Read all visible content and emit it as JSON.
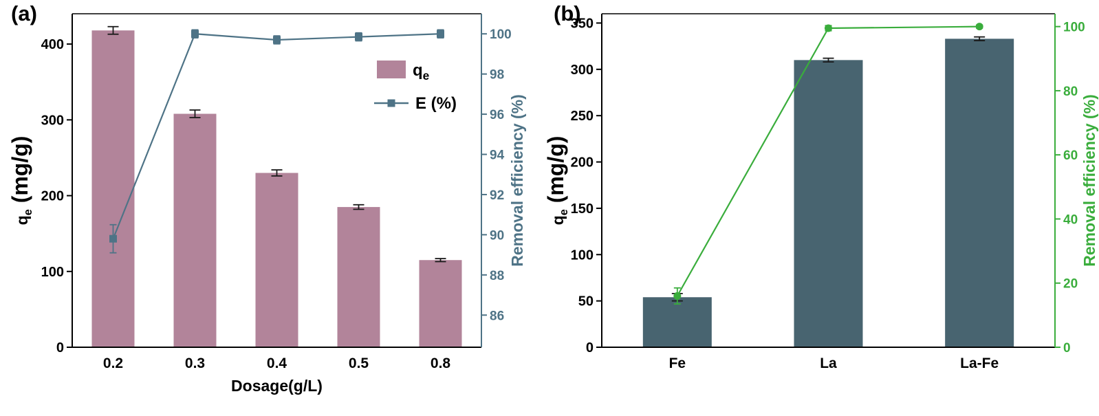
{
  "figure": {
    "background": "#ffffff"
  },
  "panels": [
    {
      "label": "(a)"
    },
    {
      "label": "(b)"
    }
  ],
  "chart_data": [
    {
      "type": "bar+line",
      "panel": "a",
      "categories": [
        "0.2",
        "0.3",
        "0.4",
        "0.5",
        "0.8"
      ],
      "xlabel": "Dosage(g/L)",
      "bar_series": {
        "name": "qe",
        "color": "#b2849a",
        "values": [
          418,
          308,
          230,
          185,
          115
        ],
        "errors": [
          5,
          5,
          4,
          3,
          2
        ]
      },
      "line_series": {
        "name": "E (%)",
        "color": "#4e7386",
        "marker": "square",
        "values": [
          89.8,
          100,
          99.7,
          99.85,
          100
        ],
        "errors": [
          0.7,
          0.2,
          0.2,
          0.2,
          0.2
        ]
      },
      "left_axis": {
        "label": {
          "pre": "q",
          "sub": "e",
          "post": " (mg/g)"
        },
        "ylim": [
          0,
          440
        ],
        "ticks": [
          0,
          100,
          200,
          300,
          400
        ],
        "color": "#000000"
      },
      "right_axis": {
        "label": {
          "pre": "Removal efficiency (%)"
        },
        "ylim": [
          84.4,
          101
        ],
        "ticks": [
          86,
          88,
          90,
          92,
          94,
          96,
          98,
          100
        ],
        "color": "#4e7386"
      },
      "legend": {
        "visible": true,
        "items": [
          {
            "pre": "q",
            "sub": "e"
          },
          {
            "pre": "E (%)"
          }
        ]
      }
    },
    {
      "type": "bar+line",
      "panel": "b",
      "categories": [
        "Fe",
        "La",
        "La-Fe"
      ],
      "xlabel": "",
      "bar_series": {
        "name": "qe",
        "color": "#486470",
        "values": [
          54,
          310,
          333
        ],
        "errors": [
          4,
          2,
          2
        ]
      },
      "line_series": {
        "name": "Removal efficiency (%)",
        "color": "#3aad3c",
        "marker": "circle",
        "values": [
          16,
          99.5,
          100
        ],
        "errors": [
          2.5,
          0.8,
          0.5
        ]
      },
      "left_axis": {
        "label": {
          "pre": "q",
          "sub": "e",
          "post": " (mg/g)"
        },
        "ylim": [
          0,
          360
        ],
        "ticks": [
          0,
          50,
          100,
          150,
          200,
          250,
          300,
          350
        ],
        "color": "#000000"
      },
      "right_axis": {
        "label": {
          "pre": "Removal efficiency (%)"
        },
        "ylim": [
          0,
          104
        ],
        "ticks": [
          0,
          20,
          40,
          60,
          80,
          100
        ],
        "color": "#3aad3c"
      },
      "legend": {
        "visible": false,
        "items": []
      }
    }
  ]
}
